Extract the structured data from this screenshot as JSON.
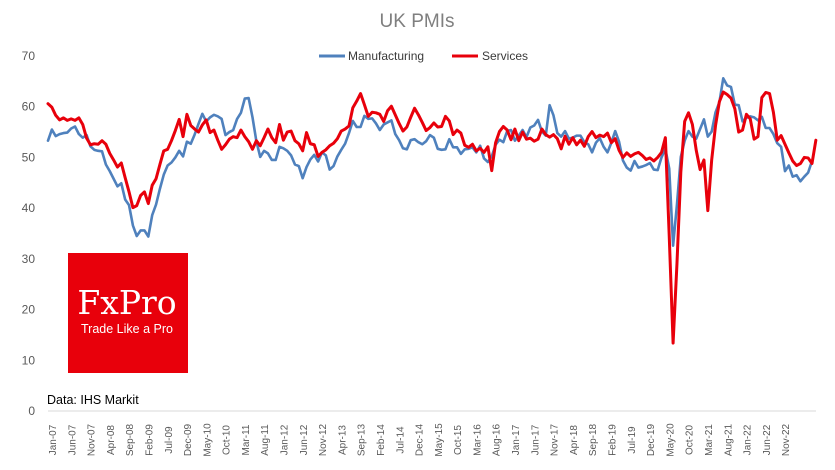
{
  "chart_data": {
    "type": "line",
    "title": "UK PMIs",
    "xlabel": "",
    "ylabel": "",
    "ylim": [
      0,
      70
    ],
    "yticks": [
      0,
      10,
      20,
      30,
      40,
      50,
      60,
      70
    ],
    "grid": false,
    "legend_position": "top",
    "x_tick_labels": [
      "Jan-07",
      "Jun-07",
      "Nov-07",
      "Apr-08",
      "Sep-08",
      "Feb-09",
      "Jul-09",
      "Dec-09",
      "May-10",
      "Oct-10",
      "Mar-11",
      "Aug-11",
      "Jan-12",
      "Jun-12",
      "Nov-12",
      "Apr-13",
      "Sep-13",
      "Feb-14",
      "Jul-14",
      "Dec-14",
      "May-15",
      "Oct-15",
      "Mar-16",
      "Aug-16",
      "Jan-17",
      "Jun-17",
      "Nov-17",
      "Apr-18",
      "Sep-18",
      "Feb-19",
      "Jul-19",
      "Dec-19",
      "May-20",
      "Oct-20",
      "Mar-21",
      "Aug-21",
      "Jan-22",
      "Jun-22",
      "Nov-22"
    ],
    "x_start": "Jan-07",
    "x_frequency": "monthly",
    "series": [
      {
        "name": "Manufacturing",
        "color": "#4f81bd",
        "values": [
          53.3,
          55.5,
          54.2,
          54.6,
          54.8,
          54.9,
          55.7,
          56.1,
          54.6,
          53.9,
          54.4,
          52.2,
          51.5,
          51.3,
          51.2,
          48.6,
          47.3,
          45.8,
          44.3,
          44.9,
          41.7,
          40.6,
          36.6,
          34.5,
          35.6,
          35.6,
          34.4,
          38.6,
          40.7,
          43.8,
          46.6,
          48.4,
          49.0,
          50.0,
          51.3,
          50.2,
          53.1,
          52.7,
          54.5,
          56.6,
          58.6,
          57.1,
          57.9,
          58.4,
          58.1,
          57.6,
          54.4,
          55.0,
          55.4,
          57.6,
          58.8,
          61.6,
          61.7,
          57.9,
          53.2,
          50.1,
          51.3,
          50.8,
          49.5,
          49.5,
          52.1,
          51.8,
          51.3,
          50.4,
          48.6,
          48.3,
          45.9,
          48.1,
          49.6,
          50.5,
          49.2,
          51.0,
          50.4,
          47.6,
          48.3,
          50.2,
          51.5,
          52.7,
          54.8,
          57.2,
          56.0,
          56.0,
          58.2,
          57.6,
          57.7,
          56.7,
          55.4,
          56.5,
          56.9,
          57.3,
          54.6,
          53.4,
          51.8,
          51.6,
          53.4,
          53.6,
          53.0,
          52.6,
          53.2,
          54.4,
          53.9,
          51.7,
          51.5,
          51.6,
          53.6,
          52.0,
          52.0,
          50.7,
          51.6,
          51.7,
          52.0,
          51.0,
          52.3,
          49.8,
          49.1,
          50.2,
          52.5,
          53.5,
          53.0,
          55.2,
          55.4,
          53.3,
          54.3,
          55.4,
          54.0,
          55.9,
          56.3,
          57.4,
          55.1,
          54.3,
          60.3,
          58.3,
          54.8,
          54.1,
          55.2,
          53.7,
          53.9,
          54.3,
          54.3,
          53.0,
          52.6,
          51.0,
          52.9,
          53.8,
          52.1,
          51.0,
          52.9,
          55.2,
          53.1,
          49.4,
          48.0,
          47.4,
          49.3,
          48.0,
          48.2,
          48.5,
          48.9,
          47.6,
          47.5,
          50.0,
          51.7,
          47.8,
          32.6,
          40.7,
          50.1,
          53.3,
          55.2,
          54.1,
          53.7,
          55.6,
          57.5,
          54.1,
          55.1,
          58.9,
          60.9,
          65.6,
          64.2,
          63.9,
          60.4,
          60.3,
          57.1,
          57.8,
          58.1,
          57.9,
          57.3,
          58.0,
          55.8,
          55.8,
          54.6,
          52.8,
          52.1,
          47.3,
          48.4,
          46.2,
          46.5,
          45.3,
          46.2,
          47.0,
          49.3
        ]
      },
      {
        "name": "Services",
        "color": "#e8000b",
        "values": [
          60.6,
          59.9,
          58.3,
          57.4,
          57.8,
          57.3,
          57.6,
          57.3,
          57.8,
          56.5,
          53.8,
          52.5,
          52.7,
          52.6,
          53.3,
          52.6,
          50.8,
          49.5,
          48.1,
          48.9,
          46.0,
          43.2,
          40.1,
          40.5,
          42.5,
          43.2,
          40.9,
          44.5,
          45.8,
          48.6,
          51.3,
          51.6,
          53.3,
          55.3,
          57.5,
          54.1,
          58.5,
          56.3,
          55.6,
          55.0,
          56.4,
          57.4,
          54.9,
          55.4,
          53.4,
          51.6,
          52.5,
          53.6,
          54.1,
          53.9,
          55.4,
          54.1,
          53.1,
          51.6,
          53.3,
          52.3,
          53.9,
          55.6,
          53.9,
          52.9,
          56.5,
          53.4,
          55.0,
          55.2,
          53.3,
          52.7,
          51.3,
          54.9,
          52.7,
          52.5,
          50.2,
          51.0,
          51.5,
          52.3,
          52.8,
          53.7,
          55.2,
          55.6,
          56.2,
          59.8,
          61.1,
          62.6,
          60.4,
          58.1,
          58.9,
          58.8,
          58.5,
          57.1,
          59.2,
          60.1,
          58.4,
          56.7,
          55.2,
          56.0,
          57.9,
          59.7,
          58.4,
          56.9,
          55.3,
          55.9,
          56.8,
          56.0,
          56.1,
          58.1,
          57.2,
          54.5,
          55.4,
          54.8,
          52.4,
          52.0,
          52.6,
          51.3,
          51.8,
          51.0,
          52.1,
          47.4,
          52.9,
          55.1,
          56.1,
          55.4,
          53.5,
          55.6,
          53.3,
          55.0,
          53.6,
          53.8,
          53.2,
          53.6,
          55.6,
          54.5,
          54.0,
          54.5,
          53.7,
          51.7,
          54.2,
          52.6,
          53.9,
          52.5,
          53.4,
          52.2,
          54.1,
          55.1,
          53.9,
          54.4,
          54.1,
          54.8,
          52.9,
          53.7,
          51.4,
          50.0,
          50.9,
          50.2,
          50.7,
          51.0,
          50.4,
          49.6,
          49.9,
          49.3,
          50.0,
          51.0,
          53.9,
          34.5,
          13.4,
          29.0,
          47.1,
          57.1,
          58.8,
          56.5,
          51.4,
          47.6,
          49.5,
          39.5,
          49.5,
          56.3,
          61.0,
          62.9,
          62.4,
          61.7,
          59.6,
          55.0,
          55.4,
          58.5,
          57.6,
          53.6,
          54.1,
          61.8,
          62.8,
          62.6,
          58.9,
          53.4,
          54.3,
          52.6,
          50.9,
          49.3,
          48.4,
          48.8,
          50.0,
          49.9,
          48.8,
          53.4
        ]
      }
    ]
  },
  "logo": {
    "brand": "FxPro",
    "tagline": "Trade Like a Pro",
    "color": "#e8000b"
  },
  "source": "Data: IHS Markit"
}
